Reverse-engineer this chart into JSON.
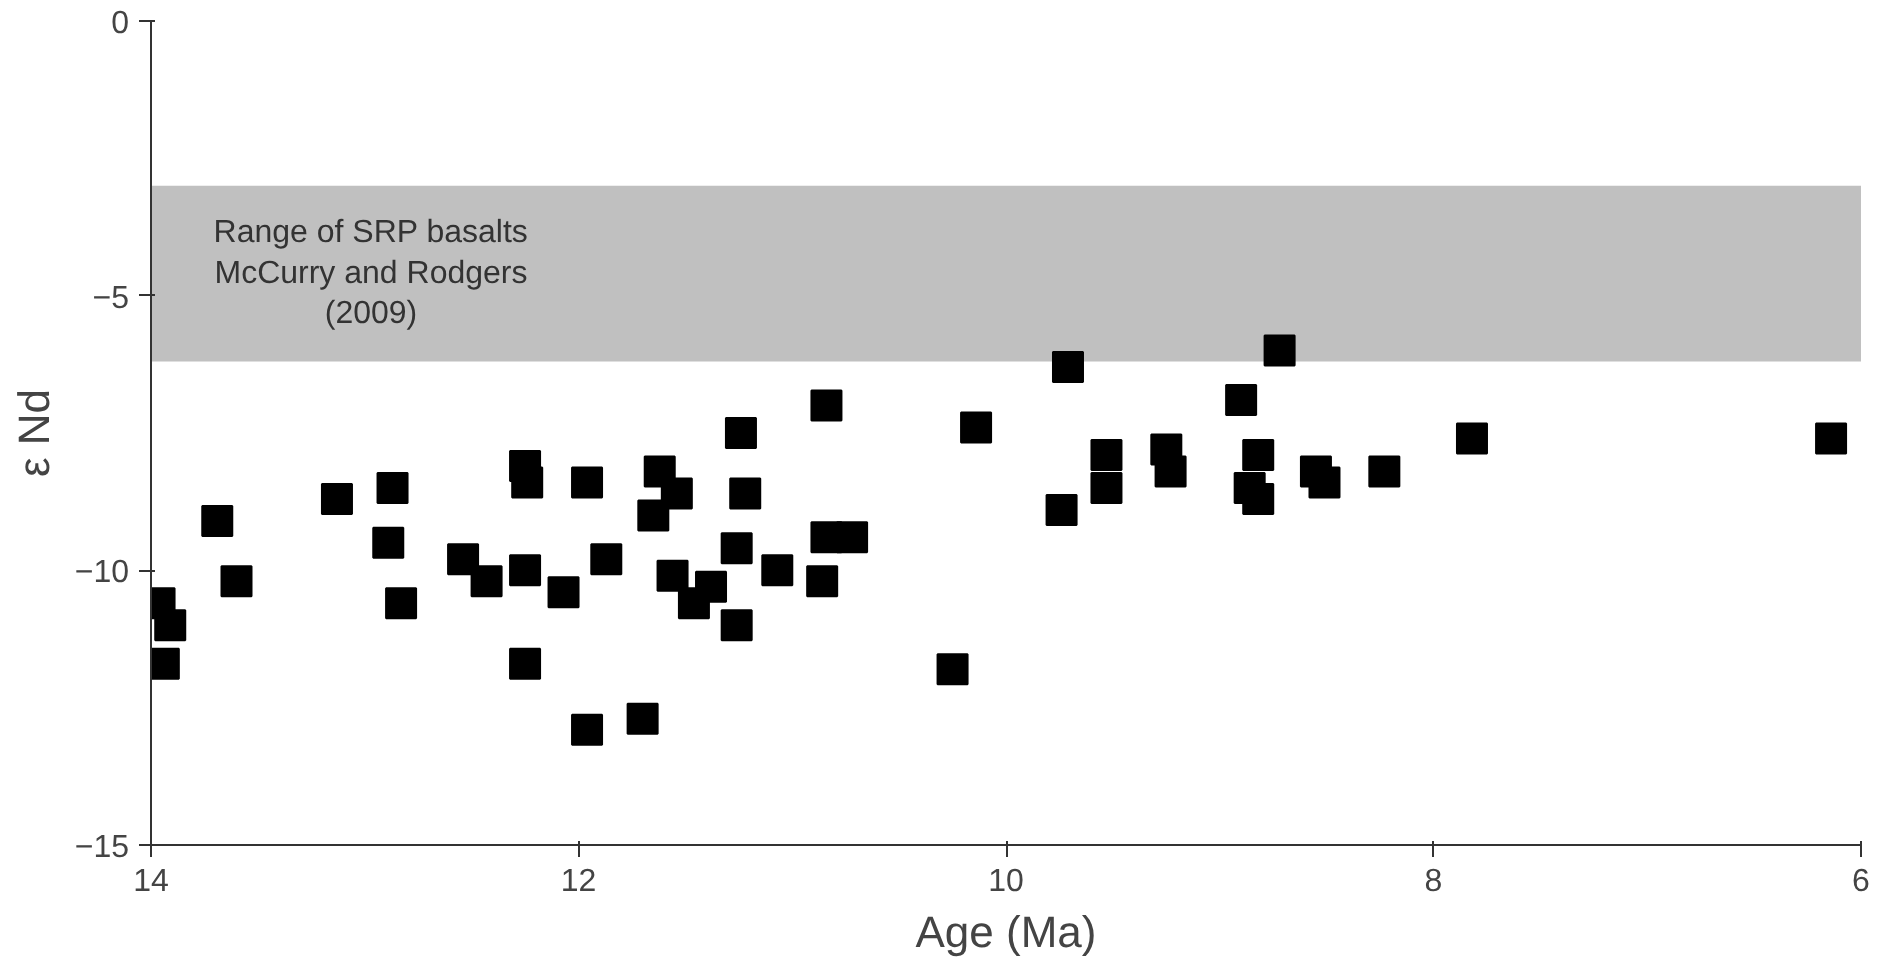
{
  "chart_data": {
    "type": "scatter",
    "xlabel": "Age (Ma)",
    "ylabel": "ε Nd",
    "xlim": [
      14,
      6
    ],
    "xticks": [
      14,
      12,
      10,
      8,
      6
    ],
    "ylim": [
      -15,
      0
    ],
    "yticks": [
      0,
      -5,
      -10,
      -15
    ],
    "grid": false,
    "marker": "square",
    "bands": [
      {
        "axis": "y",
        "from": -6.2,
        "to": -3.0,
        "label": "Range of SRP basalts\nMcCurry and Rodgers\n(2009)",
        "color": "#c0c0c0"
      }
    ],
    "series": [
      {
        "color": "#000000",
        "x": [
          13.96,
          13.91,
          13.94,
          13.69,
          13.6,
          13.13,
          12.87,
          12.89,
          12.83,
          12.25,
          12.24,
          11.96,
          11.62,
          11.65,
          11.54,
          12.54,
          12.43,
          12.25,
          12.07,
          11.87,
          11.56,
          12.25,
          11.96,
          11.7,
          11.24,
          10.84,
          10.14,
          9.71,
          11.22,
          11.26,
          11.07,
          10.86,
          10.84,
          10.72,
          11.38,
          11.46,
          11.26,
          10.25,
          9.74,
          9.53,
          9.53,
          9.25,
          9.23,
          8.72,
          8.9,
          8.82,
          8.86,
          8.82,
          8.55,
          8.51,
          8.23,
          7.82,
          6.14
        ],
        "values": [
          -10.6,
          -11.0,
          -11.7,
          -9.1,
          -10.2,
          -8.7,
          -8.5,
          -9.5,
          -10.6,
          -8.1,
          -8.4,
          -8.4,
          -8.2,
          -9.0,
          -8.6,
          -9.8,
          -10.2,
          -10.0,
          -10.4,
          -9.8,
          -10.1,
          -11.7,
          -12.9,
          -12.7,
          -7.5,
          -7.0,
          -7.4,
          -6.3,
          -8.6,
          -9.6,
          -10.0,
          -10.2,
          -9.4,
          -9.4,
          -10.3,
          -10.6,
          -11.0,
          -11.8,
          -8.9,
          -7.9,
          -8.5,
          -7.8,
          -8.2,
          -6.0,
          -6.9,
          -7.9,
          -8.5,
          -8.7,
          -8.2,
          -8.4,
          -8.2,
          -7.6,
          -7.6
        ]
      }
    ]
  }
}
